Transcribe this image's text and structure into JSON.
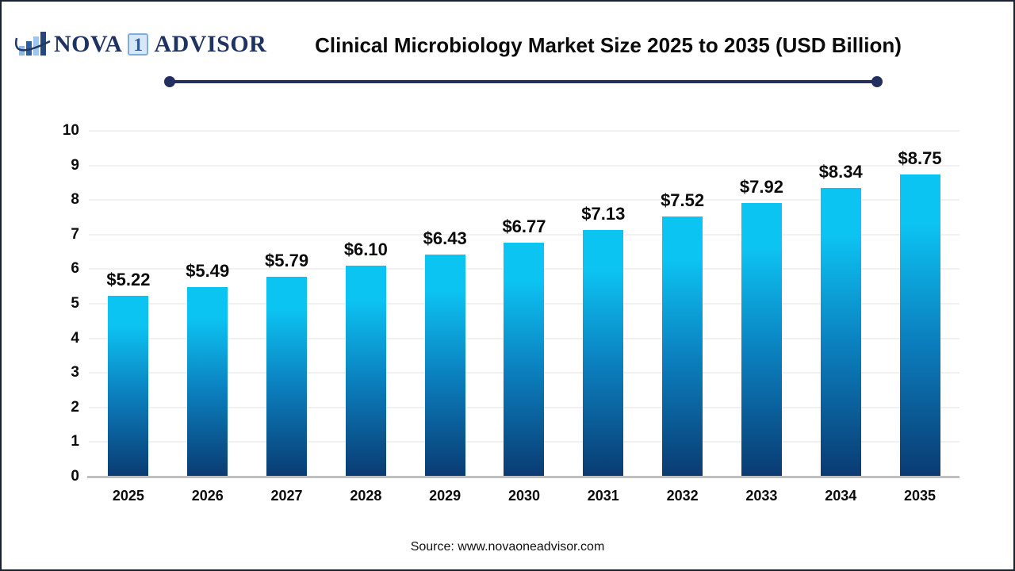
{
  "logo": {
    "word1": "NOVA",
    "boxed_digit": "1",
    "word2": "ADVISOR",
    "navy": "#1e3362",
    "box_fill": "#d6e7f7"
  },
  "header": {
    "title": "Clinical Microbiology Market Size 2025 to 2035 (USD Billion)",
    "divider_color": "#232f5e"
  },
  "chart_data": {
    "type": "bar",
    "title": "Clinical Microbiology Market Size 2025 to 2035 (USD Billion)",
    "unit": "USD Billion",
    "categories": [
      "2025",
      "2026",
      "2027",
      "2028",
      "2029",
      "2030",
      "2031",
      "2032",
      "2033",
      "2034",
      "2035"
    ],
    "values": [
      5.22,
      5.49,
      5.79,
      6.1,
      6.43,
      6.77,
      7.13,
      7.52,
      7.92,
      8.34,
      8.75
    ],
    "value_labels": [
      "$5.22",
      "$5.49",
      "$5.79",
      "$6.10",
      "$6.43",
      "$6.77",
      "$7.13",
      "$7.52",
      "$7.92",
      "$8.34",
      "$8.75"
    ],
    "ylim": [
      0,
      10
    ],
    "yticks": [
      0,
      1,
      2,
      3,
      4,
      5,
      6,
      7,
      8,
      9,
      10
    ],
    "grid": true,
    "legend": false,
    "bar_color_top": "#0cc4f2",
    "bar_color_mid": "#0b7fbe",
    "bar_color_bottom": "#0a3b72",
    "axis_line_color": "#bfbfbf",
    "gridline_color": "#f1f1f1"
  },
  "footer": {
    "source": "Source: www.novaoneadvisor.com"
  }
}
